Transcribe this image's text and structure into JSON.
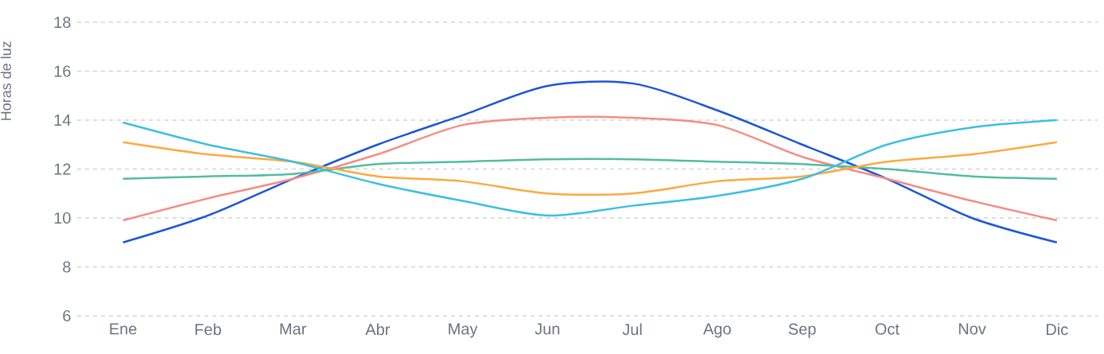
{
  "chart_data": {
    "type": "line",
    "ylabel": "Horas de luz",
    "categories": [
      "Ene",
      "Feb",
      "Mar",
      "Abr",
      "May",
      "Jun",
      "Jul",
      "Ago",
      "Sep",
      "Oct",
      "Nov",
      "Dic"
    ],
    "series": [
      {
        "color": "#1a56db",
        "values": [
          9.0,
          10.1,
          11.6,
          13.0,
          14.2,
          15.4,
          15.5,
          14.4,
          13.0,
          11.6,
          10.0,
          9.0
        ]
      },
      {
        "color": "#f48c84",
        "values": [
          9.9,
          10.8,
          11.6,
          12.6,
          13.8,
          14.1,
          14.1,
          13.8,
          12.5,
          11.6,
          10.7,
          9.9
        ]
      },
      {
        "color": "#52bd9f",
        "values": [
          11.6,
          11.7,
          11.8,
          12.2,
          12.3,
          12.4,
          12.4,
          12.3,
          12.2,
          12.0,
          11.7,
          11.6
        ]
      },
      {
        "color": "#fca93f",
        "values": [
          13.1,
          12.6,
          12.3,
          11.7,
          11.5,
          11.0,
          11.0,
          11.5,
          11.7,
          12.3,
          12.6,
          13.1
        ]
      },
      {
        "color": "#3dbfe0",
        "values": [
          13.9,
          13.0,
          12.3,
          11.4,
          10.7,
          10.1,
          10.5,
          10.9,
          11.6,
          13.0,
          13.7,
          14.0
        ]
      }
    ],
    "ylim": [
      6,
      18
    ],
    "yticks": [
      6,
      8,
      10,
      12,
      14,
      16,
      18
    ],
    "grid": "y"
  }
}
